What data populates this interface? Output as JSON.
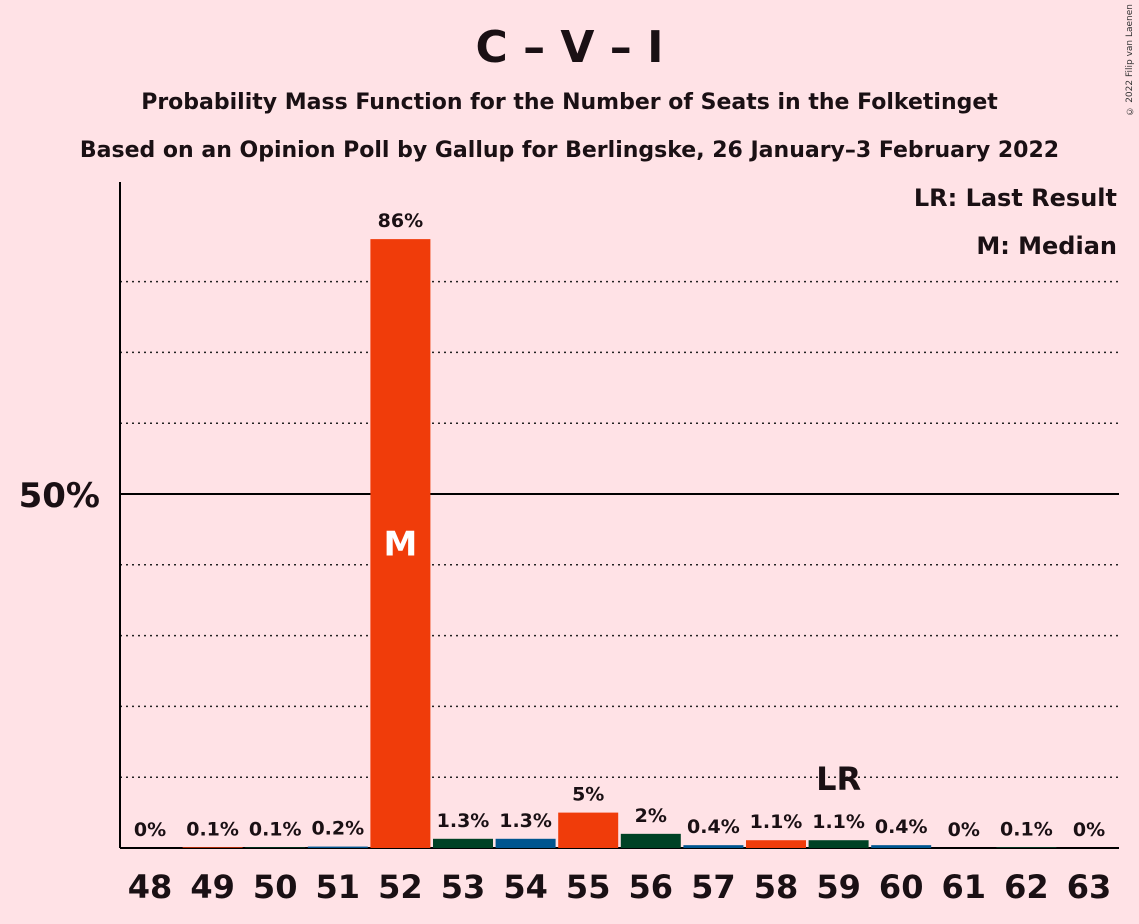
{
  "title": "C – V – I",
  "subtitle_line1": "Probability Mass Function for the Number of Seats in the Folketinget",
  "subtitle_line2": "Based on an Opinion Poll by Gallup for Berlingske, 26 January–3 February 2022",
  "copyright": "© 2022 Filip van Laenen",
  "legend": {
    "last_result": "LR: Last Result",
    "median": "M: Median"
  },
  "colors": {
    "background": "#FFE2E6",
    "blue": "#00558F",
    "red": "#F03C0A",
    "green": "#004225",
    "text": "#1a1014"
  },
  "chart_data": {
    "type": "bar",
    "categories": [
      "48",
      "49",
      "50",
      "51",
      "52",
      "53",
      "54",
      "55",
      "56",
      "57",
      "58",
      "59",
      "60",
      "61",
      "62",
      "63"
    ],
    "values": [
      0,
      0.1,
      0.1,
      0.2,
      86,
      1.3,
      1.3,
      5,
      2,
      0.4,
      1.1,
      1.1,
      0.4,
      0,
      0.1,
      0
    ],
    "value_labels": [
      "0%",
      "0.1%",
      "0.1%",
      "0.2%",
      "86%",
      "1.3%",
      "1.3%",
      "5%",
      "2%",
      "0.4%",
      "1.1%",
      "1.1%",
      "0.4%",
      "0%",
      "0.1%",
      "0%"
    ],
    "bar_colors": [
      "blue",
      "red",
      "green",
      "blue",
      "red",
      "green",
      "blue",
      "red",
      "green",
      "blue",
      "red",
      "green",
      "blue",
      "red",
      "green",
      "blue"
    ],
    "ylabel_tick": "50%",
    "ylim": [
      0,
      94
    ],
    "median_category": "52",
    "median_label": "M",
    "last_result_category": "59",
    "last_result_label": "LR"
  }
}
